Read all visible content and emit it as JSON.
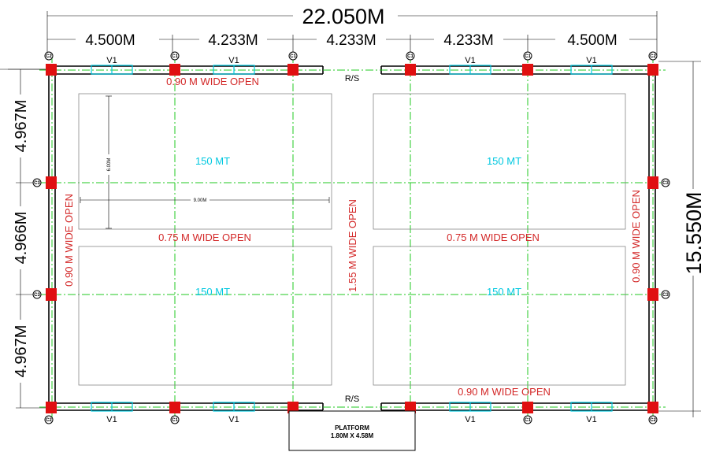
{
  "overall_width": "22.050M",
  "overall_height": "15.550M",
  "bay_widths": [
    "4.500M",
    "4.233M",
    "4.233M",
    "4.233M",
    "4.500M"
  ],
  "bay_heights": [
    "4.967M",
    "4.966M",
    "4.967M"
  ],
  "open_top": "0.90 M WIDE OPEN",
  "open_bottom": "0.90 M WIDE OPEN",
  "open_mid_left": "0.75 M WIDE OPEN",
  "open_mid_right": "0.75 M WIDE OPEN",
  "open_left": "0.90 M WIDE OPEN",
  "open_right": "0.90 M WIDE OPEN",
  "open_center": "1.55 M WIDE OPEN",
  "storage_label": "150 MT",
  "rs_label": "R/S",
  "window_label": "V1",
  "inner_width": "9.00M",
  "inner_height": "6.00M",
  "platform_title": "PLATFORM",
  "platform_size": "1.80M X 4.58M",
  "column_labels": {
    "corner": "C2",
    "main": "C1",
    "side": "C3"
  },
  "colors": {
    "grid": "#22c822",
    "column": "#e01010",
    "window": "#00c8e0",
    "text_red": "#d32828"
  }
}
